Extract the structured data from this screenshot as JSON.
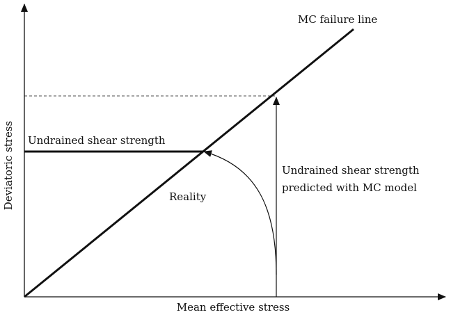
{
  "labels": {
    "failure_line": "MC failure line",
    "undrained_strength": "Undrained shear strength",
    "reality": "Reality",
    "predicted": [
      "Undrained shear strength",
      "predicted with MC model"
    ]
  },
  "axes": {
    "y_label": "Deviatoric stress",
    "x_label": "Mean effective stress"
  }
}
